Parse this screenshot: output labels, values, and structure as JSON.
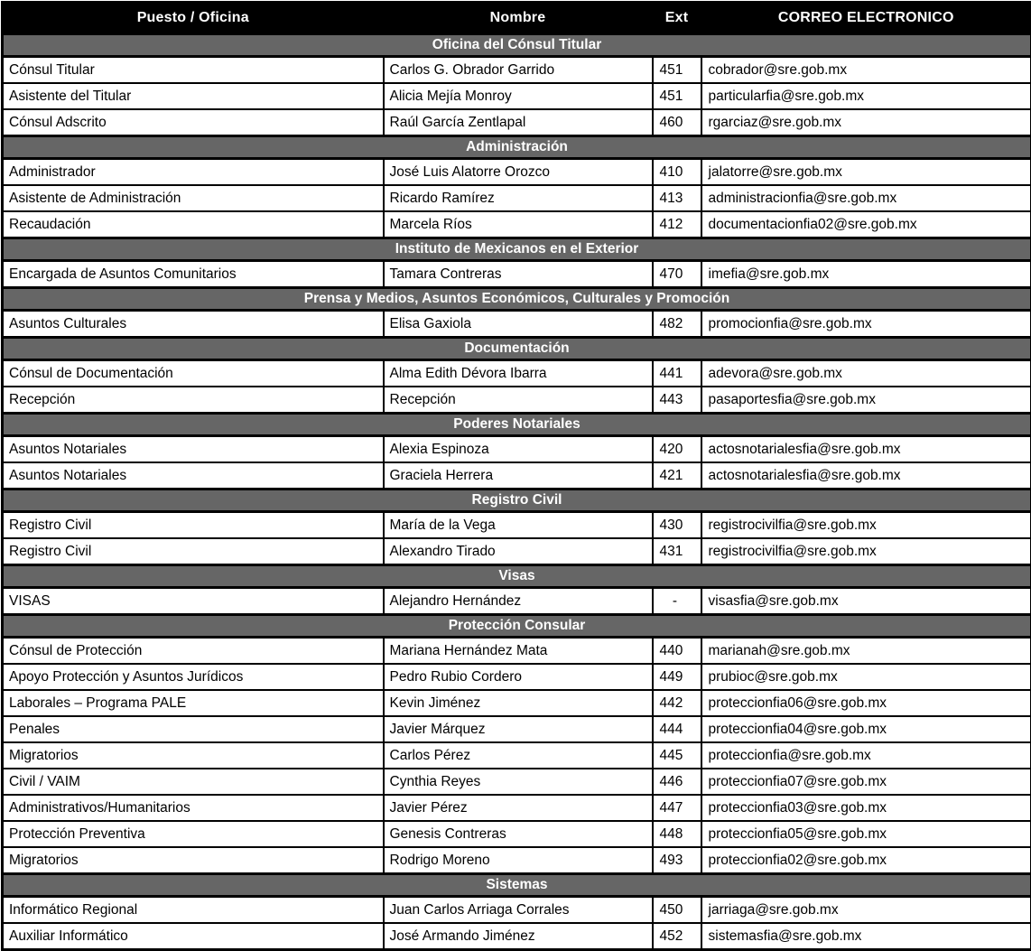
{
  "colors": {
    "header_bg": "#000000",
    "header_text": "#ffffff",
    "section_bg": "#666666",
    "section_text": "#ffffff",
    "row_bg": "#ffffff",
    "row_text": "#000000",
    "border": "#000000"
  },
  "table": {
    "columns": [
      {
        "label": "Puesto / Oficina"
      },
      {
        "label": "Nombre"
      },
      {
        "label": "Ext"
      },
      {
        "label": "CORREO ELECTRONICO"
      }
    ],
    "sections": [
      {
        "title": "Oficina del Cónsul Titular",
        "rows": [
          [
            "Cónsul Titular",
            "Carlos G. Obrador Garrido",
            "451",
            "cobrador@sre.gob.mx"
          ],
          [
            "Asistente del Titular",
            "Alicia Mejía Monroy",
            "451",
            "particularfia@sre.gob.mx"
          ],
          [
            "Cónsul Adscrito",
            "Raúl García Zentlapal",
            "460",
            "rgarciaz@sre.gob.mx"
          ]
        ]
      },
      {
        "title": "Administración",
        "rows": [
          [
            "Administrador",
            "José Luis Alatorre Orozco",
            "410",
            "jalatorre@sre.gob.mx"
          ],
          [
            "Asistente de Administración",
            "Ricardo Ramírez",
            "413",
            "administracionfia@sre.gob.mx"
          ],
          [
            "Recaudación",
            "Marcela Ríos",
            "412",
            "documentacionfia02@sre.gob.mx"
          ]
        ]
      },
      {
        "title": "Instituto de Mexicanos en el Exterior",
        "rows": [
          [
            "Encargada de Asuntos Comunitarios",
            "Tamara Contreras",
            "470",
            "imefia@sre.gob.mx"
          ]
        ]
      },
      {
        "title": "Prensa y Medios, Asuntos Económicos, Culturales y Promoción",
        "rows": [
          [
            "Asuntos Culturales",
            "Elisa Gaxiola",
            "482",
            "promocionfia@sre.gob.mx"
          ]
        ]
      },
      {
        "title": "Documentación",
        "rows": [
          [
            "Cónsul de Documentación",
            "Alma Edith Dévora Ibarra",
            "441",
            "adevora@sre.gob.mx"
          ],
          [
            "Recepción",
            "Recepción",
            "443",
            "pasaportesfia@sre.gob.mx"
          ]
        ]
      },
      {
        "title": "Poderes Notariales",
        "rows": [
          [
            "Asuntos Notariales",
            "Alexia Espinoza",
            "420",
            "actosnotarialesfia@sre.gob.mx"
          ],
          [
            "Asuntos Notariales",
            "Graciela Herrera",
            "421",
            "actosnotarialesfia@sre.gob.mx"
          ]
        ]
      },
      {
        "title": "Registro Civil",
        "rows": [
          [
            "Registro Civil",
            "María de la Vega",
            "430",
            "registrocivilfia@sre.gob.mx"
          ],
          [
            "Registro Civil",
            "Alexandro Tirado",
            "431",
            "registrocivilfia@sre.gob.mx"
          ]
        ]
      },
      {
        "title": "Visas",
        "rows": [
          [
            "VISAS",
            "Alejandro Hernández",
            "-",
            "visasfia@sre.gob.mx"
          ]
        ]
      },
      {
        "title": "Protección Consular",
        "rows": [
          [
            "Cónsul de Protección",
            "Mariana Hernández Mata",
            "440",
            "marianah@sre.gob.mx"
          ],
          [
            "Apoyo Protección y Asuntos Jurídicos",
            "Pedro Rubio Cordero",
            "449",
            "prubioc@sre.gob.mx"
          ],
          [
            "Laborales – Programa PALE",
            "Kevin Jiménez",
            "442",
            "proteccionfia06@sre.gob.mx"
          ],
          [
            "Penales",
            "Javier Márquez",
            "444",
            "proteccionfia04@sre.gob.mx"
          ],
          [
            "Migratorios",
            "Carlos Pérez",
            "445",
            "proteccionfia@sre.gob.mx"
          ],
          [
            "Civil / VAIM",
            "Cynthia Reyes",
            "446",
            "proteccionfia07@sre.gob.mx"
          ],
          [
            "Administrativos/Humanitarios",
            "Javier Pérez",
            "447",
            "proteccionfia03@sre.gob.mx"
          ],
          [
            "Protección Preventiva",
            "Genesis Contreras",
            "448",
            "proteccionfia05@sre.gob.mx"
          ],
          [
            "Migratorios",
            "Rodrigo Moreno",
            "493",
            "proteccionfia02@sre.gob.mx"
          ]
        ]
      },
      {
        "title": "Sistemas",
        "rows": [
          [
            "Informático Regional",
            "Juan Carlos Arriaga Corrales",
            "450",
            "jarriaga@sre.gob.mx"
          ],
          [
            "Auxiliar Informático",
            "José Armando Jiménez",
            "452",
            "sistemasfia@sre.gob.mx"
          ]
        ]
      }
    ]
  }
}
